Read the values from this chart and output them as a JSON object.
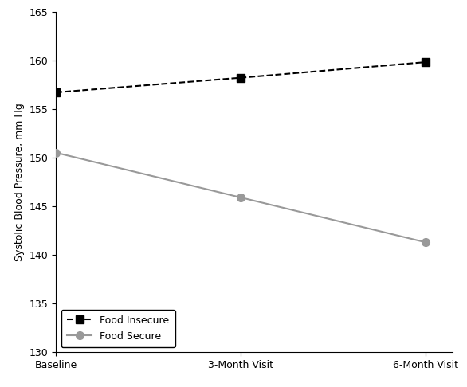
{
  "x_labels": [
    "Baseline",
    "3-Month Visit",
    "6-Month Visit"
  ],
  "food_insecure_values": [
    156.7,
    158.2,
    159.8
  ],
  "food_secure_values": [
    150.5,
    145.9,
    141.3
  ],
  "food_insecure_color": "#000000",
  "food_secure_color": "#999999",
  "food_insecure_label": "Food Insecure",
  "food_secure_label": "Food Secure",
  "ylabel": "Systolic Blood Pressure, mm Hg",
  "ylim": [
    130,
    165
  ],
  "yticks": [
    130,
    135,
    140,
    145,
    150,
    155,
    160,
    165
  ],
  "marker_insecure": "s",
  "marker_secure": "o",
  "marker_size_insecure": 7,
  "marker_size_secure": 7,
  "line_width": 1.5,
  "background_color": "#ffffff",
  "xlabel_fontsize": 9,
  "ylabel_fontsize": 9,
  "tick_fontsize": 9,
  "legend_fontsize": 9
}
